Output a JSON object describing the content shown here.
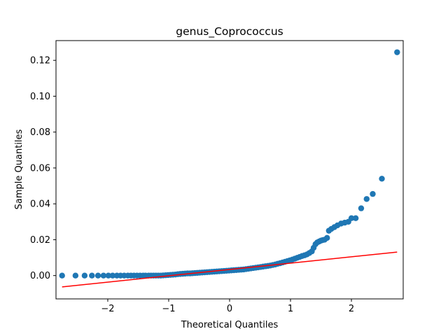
{
  "chart_data": {
    "type": "scatter",
    "title": "genus_Coprococcus",
    "xlabel": "Theoretical Quantiles",
    "ylabel": "Sample Quantiles",
    "xlim": [
      -2.85,
      2.85
    ],
    "ylim": [
      -0.013,
      0.131
    ],
    "xticks": [
      -2,
      -1,
      0,
      1,
      2
    ],
    "yticks": [
      0.0,
      0.02,
      0.04,
      0.06,
      0.08,
      0.1,
      0.12
    ],
    "xtick_labels": [
      "−2",
      "−1",
      "0",
      "1",
      "2"
    ],
    "ytick_labels": [
      "0.00",
      "0.02",
      "0.04",
      "0.06",
      "0.08",
      "0.10",
      "0.12"
    ],
    "grid": false,
    "legend": "none",
    "points_color": "#1f77b4",
    "reference_line": {
      "color": "#ff0000",
      "x": [
        -2.75,
        2.75
      ],
      "y": [
        -0.0063,
        0.0131
      ]
    },
    "points": [
      [
        -2.75,
        0.0
      ],
      [
        -2.53,
        0.0
      ],
      [
        -2.38,
        0.0
      ],
      [
        -2.26,
        0.0
      ],
      [
        -2.16,
        0.0
      ],
      [
        -2.07,
        0.0
      ],
      [
        -1.99,
        0.0
      ],
      [
        -1.92,
        0.0
      ],
      [
        -1.85,
        0.0
      ],
      [
        -1.79,
        0.0
      ],
      [
        -1.73,
        0.0
      ],
      [
        -1.67,
        0.0
      ],
      [
        -1.62,
        0.0
      ],
      [
        -1.57,
        0.0
      ],
      [
        -1.52,
        0.0
      ],
      [
        -1.47,
        0.0
      ],
      [
        -1.42,
        0.0
      ],
      [
        -1.38,
        0.0
      ],
      [
        -1.33,
        0.0
      ],
      [
        -1.29,
        0.0
      ],
      [
        -1.25,
        0.0
      ],
      [
        -1.21,
        0.0
      ],
      [
        -1.17,
        0.0
      ],
      [
        -1.13,
        0.0
      ],
      [
        -1.09,
        0.0001
      ],
      [
        -1.05,
        0.0002
      ],
      [
        -1.01,
        0.0003
      ],
      [
        -0.97,
        0.0004
      ],
      [
        -0.93,
        0.0005
      ],
      [
        -0.89,
        0.0006
      ],
      [
        -0.85,
        0.0008
      ],
      [
        -0.81,
        0.0009
      ],
      [
        -0.77,
        0.001
      ],
      [
        -0.73,
        0.0011
      ],
      [
        -0.69,
        0.0012
      ],
      [
        -0.65,
        0.0012
      ],
      [
        -0.61,
        0.0013
      ],
      [
        -0.57,
        0.0014
      ],
      [
        -0.53,
        0.0015
      ],
      [
        -0.49,
        0.0016
      ],
      [
        -0.45,
        0.0017
      ],
      [
        -0.41,
        0.0018
      ],
      [
        -0.37,
        0.0019
      ],
      [
        -0.33,
        0.002
      ],
      [
        -0.29,
        0.0021
      ],
      [
        -0.25,
        0.0022
      ],
      [
        -0.21,
        0.0023
      ],
      [
        -0.17,
        0.0024
      ],
      [
        -0.13,
        0.0025
      ],
      [
        -0.09,
        0.0026
      ],
      [
        -0.05,
        0.0027
      ],
      [
        -0.01,
        0.0028
      ],
      [
        0.03,
        0.0029
      ],
      [
        0.07,
        0.003
      ],
      [
        0.11,
        0.0031
      ],
      [
        0.15,
        0.0032
      ],
      [
        0.19,
        0.0033
      ],
      [
        0.23,
        0.0034
      ],
      [
        0.27,
        0.0036
      ],
      [
        0.31,
        0.0038
      ],
      [
        0.35,
        0.004
      ],
      [
        0.39,
        0.0042
      ],
      [
        0.43,
        0.0044
      ],
      [
        0.47,
        0.0046
      ],
      [
        0.51,
        0.0048
      ],
      [
        0.55,
        0.005
      ],
      [
        0.59,
        0.0052
      ],
      [
        0.63,
        0.0054
      ],
      [
        0.67,
        0.0056
      ],
      [
        0.71,
        0.0059
      ],
      [
        0.75,
        0.0062
      ],
      [
        0.79,
        0.0066
      ],
      [
        0.83,
        0.0069
      ],
      [
        0.87,
        0.0073
      ],
      [
        0.91,
        0.0077
      ],
      [
        0.95,
        0.0081
      ],
      [
        0.99,
        0.0085
      ],
      [
        1.03,
        0.0089
      ],
      [
        1.07,
        0.0094
      ],
      [
        1.11,
        0.0099
      ],
      [
        1.15,
        0.0104
      ],
      [
        1.19,
        0.0109
      ],
      [
        1.23,
        0.0113
      ],
      [
        1.27,
        0.0118
      ],
      [
        1.31,
        0.0126
      ],
      [
        1.35,
        0.0135
      ],
      [
        1.38,
        0.0155
      ],
      [
        1.41,
        0.0175
      ],
      [
        1.44,
        0.0185
      ],
      [
        1.47,
        0.019
      ],
      [
        1.5,
        0.0195
      ],
      [
        1.53,
        0.0198
      ],
      [
        1.56,
        0.02
      ],
      [
        1.6,
        0.021
      ],
      [
        1.63,
        0.025
      ],
      [
        1.67,
        0.026
      ],
      [
        1.72,
        0.027
      ],
      [
        1.77,
        0.028
      ],
      [
        1.83,
        0.029
      ],
      [
        1.89,
        0.0295
      ],
      [
        1.95,
        0.03
      ],
      [
        2.0,
        0.032
      ],
      [
        2.07,
        0.032
      ],
      [
        2.16,
        0.0375
      ],
      [
        2.25,
        0.0427
      ],
      [
        2.35,
        0.0455
      ],
      [
        2.5,
        0.054
      ],
      [
        2.75,
        0.1245
      ]
    ]
  }
}
